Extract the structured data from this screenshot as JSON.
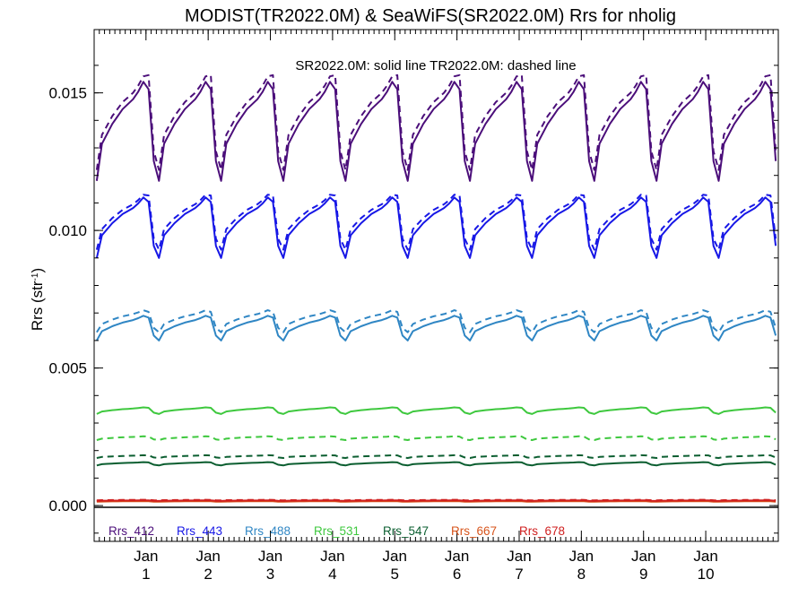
{
  "chart_data": {
    "type": "line",
    "title": "MODIST(TR2022.0M) & SeaWiFS(SR2022.0M)  Rrs for nholig",
    "ylabel_main": "Rrs (str",
    "ylabel_sup": "-1",
    "ylabel_close": ")",
    "annotation": "SR2022.0M: solid line   TR2022.0M: dashed line",
    "ylim": [
      -0.0013,
      0.0173
    ],
    "xlim": [
      0,
      132
    ],
    "yticks": [
      {
        "value": 0.0,
        "label": "0.000"
      },
      {
        "value": 0.005,
        "label": "0.005"
      },
      {
        "value": 0.01,
        "label": "0.010"
      },
      {
        "value": 0.015,
        "label": "0.015"
      }
    ],
    "xticks": [
      {
        "value": 10,
        "month": "Jan",
        "year": "1"
      },
      {
        "value": 22,
        "month": "Jan",
        "year": "2"
      },
      {
        "value": 34,
        "month": "Jan",
        "year": "3"
      },
      {
        "value": 46,
        "month": "Jan",
        "year": "4"
      },
      {
        "value": 58,
        "month": "Jan",
        "year": "5"
      },
      {
        "value": 70,
        "month": "Jan",
        "year": "6"
      },
      {
        "value": 82,
        "month": "Jan",
        "year": "7"
      },
      {
        "value": 94,
        "month": "Jan",
        "year": "8"
      },
      {
        "value": 106,
        "month": "Jan",
        "year": "9"
      },
      {
        "value": 118,
        "month": "Jan",
        "year": "10"
      }
    ],
    "legend_placement": "bottom-left",
    "series": [
      {
        "name": "Rrs_412",
        "color": "#4b0e7a",
        "n": 132,
        "mean_solid": 0.0136,
        "amp_solid": 0.0018,
        "mean_dashed": 0.0139,
        "amp_dashed": 0.0017,
        "spike": 0.0005
      },
      {
        "name": "Rrs_443",
        "color": "#1717e6",
        "n": 132,
        "mean_solid": 0.0101,
        "amp_solid": 0.0011,
        "mean_dashed": 0.0103,
        "amp_dashed": 0.001,
        "spike": 0.0002
      },
      {
        "name": "Rrs_488",
        "color": "#2f86c4",
        "n": 132,
        "mean_solid": 0.00645,
        "amp_solid": 0.00045,
        "mean_dashed": 0.0067,
        "amp_dashed": 0.0004,
        "spike": 0.0
      },
      {
        "name": "Rrs_531",
        "color": "#3ec83e",
        "n": 132,
        "mean_solid": 0.00345,
        "amp_solid": 0.00012,
        "mean_dashed": 0.00245,
        "amp_dashed": 7e-05,
        "spike": 0.0
      },
      {
        "name": "Rrs_547",
        "color": "#0b5e30",
        "n": 132,
        "mean_solid": 0.00152,
        "amp_solid": 6e-05,
        "mean_dashed": 0.00178,
        "amp_dashed": 5e-05,
        "spike": 0.0
      },
      {
        "name": "Rrs_667",
        "color": "#d7541b",
        "n": 132,
        "mean_solid": 0.00015,
        "amp_solid": 1e-05,
        "mean_dashed": 0.00018,
        "amp_dashed": 1e-05,
        "spike": 0.0
      },
      {
        "name": "Rrs_678",
        "color": "#d02020",
        "n": 132,
        "mean_solid": 0.00018,
        "amp_solid": 1e-05,
        "mean_dashed": 0.0002,
        "amp_dashed": 1e-05,
        "spike": 0.0
      }
    ]
  }
}
